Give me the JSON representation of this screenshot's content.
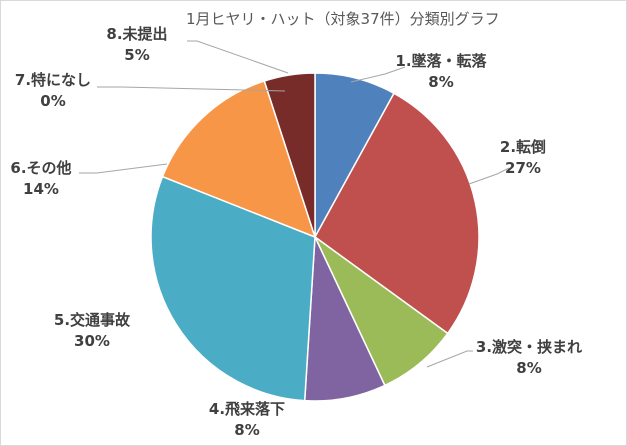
{
  "chart_data": {
    "type": "pie",
    "title": "1月ヒヤリ・ハット（対象37件）分類別グラフ",
    "categories": [
      "1.墜落・転落",
      "2.転倒",
      "3.激突・挟まれ",
      "4.飛来落下",
      "5.交通事故",
      "6.その他",
      "7.特になし",
      "8.未提出"
    ],
    "values": [
      8,
      27,
      8,
      8,
      30,
      14,
      0,
      5
    ],
    "value_labels": [
      "8%",
      "27%",
      "8%",
      "8%",
      "30%",
      "14%",
      "0%",
      "5%"
    ],
    "colors": [
      "#4F81BD",
      "#C0504D",
      "#9BBB59",
      "#8064A2",
      "#4BACC6",
      "#F79646",
      "#2C4D75",
      "#772C2A"
    ],
    "start_angle": "12 o'clock",
    "direction": "clockwise",
    "legend": "none"
  }
}
